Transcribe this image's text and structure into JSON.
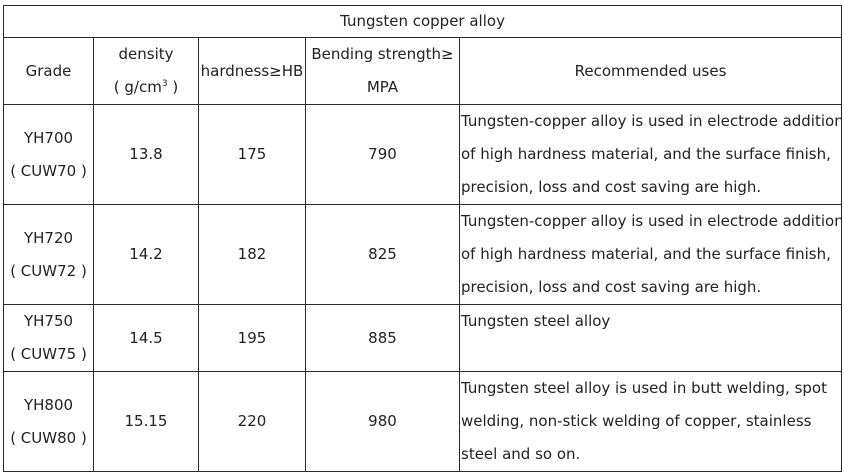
{
  "title": "Tungsten copper alloy",
  "headers": {
    "grade": "Grade",
    "density_line1": "density",
    "density_line2_pre": "( g/cm",
    "density_sup": "3",
    "density_line2_post": " )",
    "hardness": "hardness≥HB",
    "bending_line1": "Bending strength≥",
    "bending_line2": "MPA",
    "uses": "Recommended uses"
  },
  "rows": [
    {
      "grade": "YH700",
      "code": "( CUW70 )",
      "density": "13.8",
      "hardness": "175",
      "bending": "790",
      "uses": [
        "Tungsten-copper alloy is used in electrode addition",
        "of high hardness material, and the surface finish,",
        "precision, loss and cost saving are high."
      ]
    },
    {
      "grade": "YH720",
      "code": "( CUW72 )",
      "density": "14.2",
      "hardness": "182",
      "bending": "825",
      "uses": [
        "Tungsten-copper alloy is used in electrode addition",
        "of high hardness material, and the surface finish,",
        "precision, loss and cost saving are high."
      ]
    },
    {
      "grade": "YH750",
      "code": "( CUW75 )",
      "density": "14.5",
      "hardness": "195",
      "bending": "885",
      "uses": [
        "Tungsten steel alloy"
      ]
    },
    {
      "grade": "YH800",
      "code": "( CUW80 )",
      "density": "15.15",
      "hardness": "220",
      "bending": "980",
      "uses": [
        "Tungsten steel alloy is used in butt welding, spot",
        "welding, non-stick welding of copper, stainless",
        "steel and so on."
      ]
    }
  ]
}
